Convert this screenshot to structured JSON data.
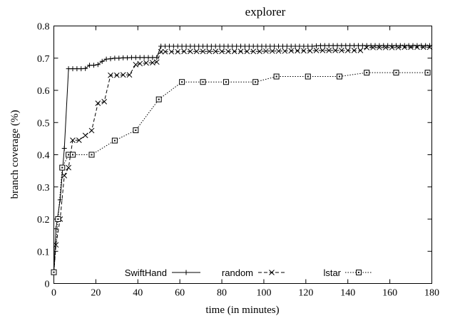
{
  "chart_data": {
    "type": "line",
    "title": "explorer",
    "xlabel": "time (in minutes)",
    "ylabel": "branch coverage (%)",
    "xlim": [
      0,
      180
    ],
    "ylim": [
      0,
      0.8
    ],
    "x_ticks": [
      0,
      20,
      40,
      60,
      80,
      100,
      120,
      140,
      160,
      180
    ],
    "y_ticks": [
      0,
      0.1,
      0.2,
      0.3,
      0.4,
      0.5,
      0.6,
      0.7,
      0.8
    ],
    "x_tick_labels": [
      "0",
      "20",
      "40",
      "60",
      "80",
      "100",
      "120",
      "140",
      "160",
      "180"
    ],
    "y_tick_labels": [
      "0",
      "0.1",
      "0.2",
      "0.3",
      "0.4",
      "0.5",
      "0.6",
      "0.7",
      "0.8"
    ],
    "grid": false,
    "legend_position": "bottom",
    "series": [
      {
        "name": "SwiftHand",
        "marker": "plus",
        "line": "solid",
        "x": [
          0,
          1,
          3,
          5,
          7,
          9,
          11,
          13,
          15,
          17,
          19,
          21,
          23,
          25,
          27,
          29,
          31,
          33,
          35,
          37,
          39,
          41,
          43,
          45,
          47,
          49,
          51,
          53,
          55,
          57,
          59,
          61,
          63,
          65,
          67,
          69,
          71,
          73,
          75,
          77,
          79,
          81,
          83,
          85,
          87,
          89,
          91,
          93,
          95,
          97,
          99,
          101,
          103,
          105,
          107,
          109,
          111,
          113,
          115,
          117,
          119,
          121,
          123,
          125,
          127,
          129,
          131,
          133,
          135,
          137,
          139,
          141,
          143,
          145,
          147,
          149,
          151,
          153,
          155,
          157,
          159,
          161,
          163,
          165,
          167,
          169,
          171,
          173,
          175,
          177,
          179
        ],
        "y": [
          0.035,
          0.17,
          0.26,
          0.42,
          0.667,
          0.667,
          0.667,
          0.667,
          0.668,
          0.678,
          0.678,
          0.68,
          0.69,
          0.697,
          0.698,
          0.7,
          0.7,
          0.701,
          0.701,
          0.702,
          0.702,
          0.702,
          0.702,
          0.702,
          0.702,
          0.702,
          0.737,
          0.737,
          0.737,
          0.737,
          0.737,
          0.737,
          0.737,
          0.737,
          0.737,
          0.737,
          0.737,
          0.737,
          0.737,
          0.737,
          0.737,
          0.737,
          0.737,
          0.737,
          0.737,
          0.737,
          0.737,
          0.737,
          0.737,
          0.737,
          0.737,
          0.737,
          0.737,
          0.737,
          0.737,
          0.737,
          0.737,
          0.737,
          0.737,
          0.737,
          0.737,
          0.737,
          0.737,
          0.738,
          0.739,
          0.739,
          0.739,
          0.739,
          0.739,
          0.739,
          0.739,
          0.739,
          0.739,
          0.739,
          0.739,
          0.739,
          0.739,
          0.739,
          0.739,
          0.739,
          0.739,
          0.739,
          0.739,
          0.739,
          0.739,
          0.739,
          0.739,
          0.739,
          0.739,
          0.739,
          0.739
        ]
      },
      {
        "name": "random",
        "marker": "cross",
        "line": "dashed",
        "x": [
          0,
          1,
          3,
          5,
          7,
          9,
          12,
          15,
          18,
          21,
          24,
          27,
          30,
          33,
          36,
          39,
          41,
          44,
          47,
          49,
          51,
          53,
          56,
          59,
          62,
          65,
          68,
          71,
          74,
          77,
          80,
          83,
          86,
          89,
          92,
          95,
          98,
          101,
          104,
          107,
          110,
          113,
          116,
          119,
          122,
          125,
          128,
          131,
          134,
          137,
          140,
          143,
          146,
          149,
          152,
          155,
          158,
          161,
          164,
          167,
          170,
          173,
          176,
          179
        ],
        "y": [
          0.035,
          0.12,
          0.2,
          0.335,
          0.36,
          0.445,
          0.445,
          0.46,
          0.475,
          0.56,
          0.565,
          0.647,
          0.647,
          0.648,
          0.648,
          0.68,
          0.683,
          0.685,
          0.686,
          0.688,
          0.72,
          0.72,
          0.72,
          0.72,
          0.721,
          0.721,
          0.721,
          0.721,
          0.721,
          0.721,
          0.721,
          0.721,
          0.721,
          0.721,
          0.721,
          0.721,
          0.721,
          0.722,
          0.722,
          0.722,
          0.722,
          0.723,
          0.723,
          0.723,
          0.723,
          0.724,
          0.724,
          0.724,
          0.724,
          0.724,
          0.724,
          0.724,
          0.724,
          0.733,
          0.733,
          0.733,
          0.733,
          0.733,
          0.733,
          0.734,
          0.734,
          0.734,
          0.734,
          0.734
        ]
      },
      {
        "name": "lstar",
        "marker": "square",
        "line": "dotted",
        "x": [
          0,
          2,
          4,
          7,
          9,
          18,
          29,
          39,
          50,
          61,
          71,
          82,
          96,
          106,
          121,
          136,
          149,
          163,
          178
        ],
        "y": [
          0.035,
          0.2,
          0.36,
          0.4,
          0.4,
          0.4,
          0.444,
          0.476,
          0.572,
          0.626,
          0.626,
          0.626,
          0.626,
          0.643,
          0.643,
          0.643,
          0.655,
          0.655,
          0.655
        ]
      }
    ]
  }
}
